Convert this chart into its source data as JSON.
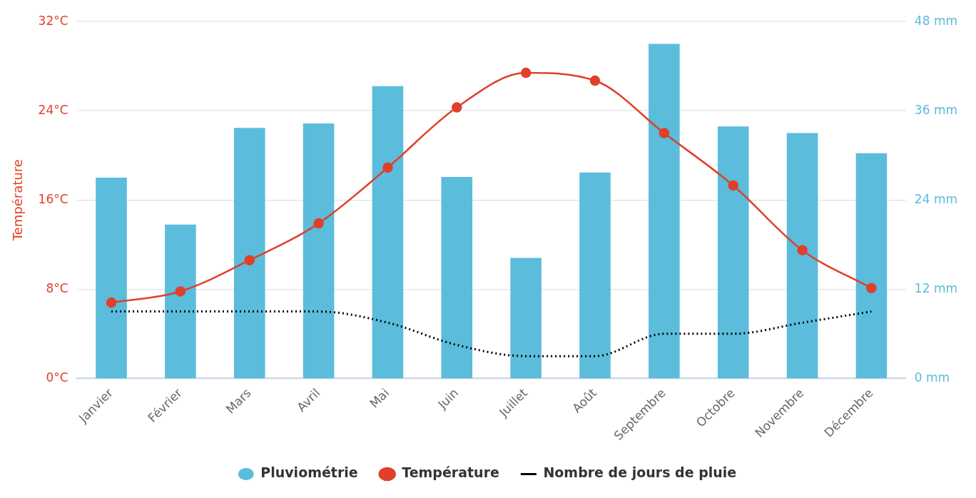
{
  "chart_data": {
    "type": "bar",
    "categories": [
      "Janvier",
      "Février",
      "Mars",
      "Avril",
      "Mai",
      "Juin",
      "Juillet",
      "Août",
      "Septembre",
      "Octobre",
      "Novembre",
      "Décembre"
    ],
    "ylabel": "Température",
    "series": [
      {
        "name": "Pluviométrie",
        "axis": "y2",
        "color": "#5bbcdc",
        "values": [
          27,
          20.7,
          33.7,
          34.3,
          39.3,
          27.1,
          16.2,
          27.7,
          45,
          33.9,
          33,
          30.3
        ]
      },
      {
        "name": "Température",
        "type": "line",
        "axis": "y",
        "color": "#e0402a",
        "marker": "circle",
        "line_style": "solid",
        "values": [
          6.8,
          7.8,
          10.6,
          13.9,
          18.9,
          24.3,
          27.4,
          26.7,
          22,
          17.3,
          11.5,
          8.1
        ]
      },
      {
        "name": "Nombre de jours de pluie",
        "type": "line",
        "axis": "y",
        "color": "#000000",
        "marker": "none",
        "line_style": "dotted",
        "values": [
          6,
          6,
          6,
          6,
          5,
          3,
          2,
          2,
          4,
          4,
          5,
          6
        ]
      }
    ],
    "ylim": [
      0,
      32
    ],
    "yticks": [
      {
        "value": 0,
        "label": "0°C"
      },
      {
        "value": 8,
        "label": "8°C"
      },
      {
        "value": 16,
        "label": "16°C"
      },
      {
        "value": 24,
        "label": "24°C"
      },
      {
        "value": 32,
        "label": "32°C"
      }
    ],
    "y2lim": [
      0,
      48
    ],
    "y2ticks": [
      {
        "value": 0,
        "label": "0 mm"
      },
      {
        "value": 12,
        "label": "12 mm"
      },
      {
        "value": 24,
        "label": "24 mm"
      },
      {
        "value": 36,
        "label": "36 mm"
      },
      {
        "value": 48,
        "label": "48 mm"
      }
    ],
    "grid": "y",
    "legend": "bottom"
  }
}
